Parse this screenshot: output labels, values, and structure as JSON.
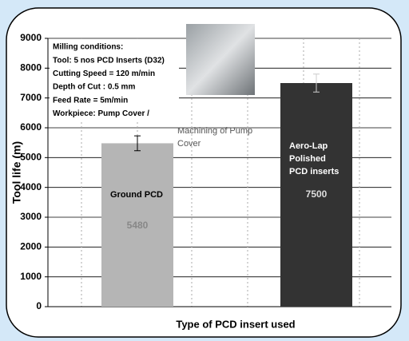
{
  "chart_data": {
    "type": "bar",
    "categories": [
      "Ground PCD",
      "Aero-Lap Polished PCD inserts"
    ],
    "series": [
      {
        "name": null,
        "values": [
          5480,
          7500
        ],
        "errors": [
          250,
          300
        ],
        "colors": [
          "#b5b5b5",
          "#333333"
        ]
      }
    ],
    "ylim": [
      0,
      9000
    ],
    "yticks": [
      0,
      1000,
      2000,
      3000,
      4000,
      5000,
      6000,
      7000,
      8000,
      9000
    ],
    "y_label": "Tool life (m)",
    "x_label": "Type of PCD insert used",
    "grid": true,
    "annotation_lines": [
      "Milling conditions:",
      "Tool:  5 nos PCD Inserts (D32)",
      "Cutting Speed = 120 m/min",
      "Depth of Cut : 0.5 mm",
      "Feed Rate = 5m/min",
      "Workpiece: Pump Cover /"
    ],
    "photo_caption": "Machining of Pump Cover"
  }
}
